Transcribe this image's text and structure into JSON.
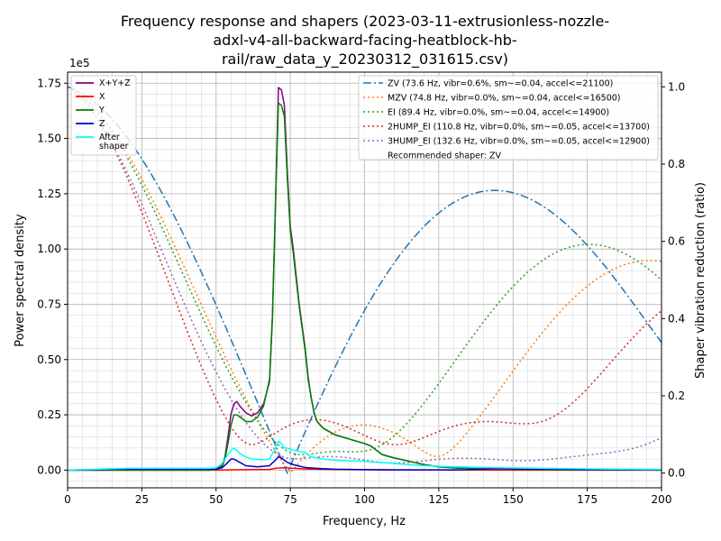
{
  "chart_data": {
    "type": "line",
    "title_lines": [
      "Frequency response and shapers (2023-03-11-extrusionless-nozzle-",
      "adxl-v4-all-backward-facing-heatblock-hb-",
      "rail/raw_data_y_20230312_031615.csv)"
    ],
    "xlabel": "Frequency, Hz",
    "ylabel": "Power spectral density",
    "y2label": "Shaper vibration reduction (ratio)",
    "y_scale_label": "1e5",
    "xlim": [
      0,
      200
    ],
    "ylim": [
      -0.08,
      1.8
    ],
    "y2lim": [
      -0.0381,
      1.0381
    ],
    "x_ticks": [
      "0",
      "25",
      "50",
      "75",
      "100",
      "125",
      "150",
      "175",
      "200"
    ],
    "y_ticks": [
      "0.00",
      "0.25",
      "0.50",
      "0.75",
      "1.00",
      "1.25",
      "1.50",
      "1.75"
    ],
    "y2_ticks": [
      "0.0",
      "0.2",
      "0.4",
      "0.6",
      "0.8",
      "1.0"
    ],
    "grid": true,
    "legend_left_position": "upper-left",
    "legend_right_position": "upper-right",
    "psd_series": [
      {
        "name": "X+Y+Z",
        "color": "#800080",
        "x": [
          0,
          20,
          48,
          50,
          52,
          53,
          54,
          55,
          56,
          57,
          58,
          60,
          62,
          64,
          66,
          68,
          69,
          70,
          71,
          72,
          73,
          74,
          75,
          76,
          78,
          80,
          81,
          82,
          83,
          84,
          86,
          90,
          95,
          100,
          102,
          104,
          106,
          110,
          115,
          120,
          125,
          130,
          135,
          140,
          150,
          160,
          170,
          180,
          190,
          200
        ],
        "y": [
          0,
          0,
          0,
          0.005,
          0.02,
          0.06,
          0.15,
          0.25,
          0.3,
          0.31,
          0.29,
          0.26,
          0.245,
          0.26,
          0.3,
          0.4,
          0.7,
          1.2,
          1.73,
          1.72,
          1.65,
          1.35,
          1.1,
          1.0,
          0.75,
          0.55,
          0.42,
          0.33,
          0.26,
          0.22,
          0.19,
          0.16,
          0.14,
          0.12,
          0.11,
          0.09,
          0.07,
          0.055,
          0.04,
          0.025,
          0.015,
          0.01,
          0.008,
          0.01,
          0.005,
          0.003,
          0.002,
          0.001,
          0.001,
          0
        ]
      },
      {
        "name": "X",
        "color": "#ff0000",
        "x": [
          0,
          50,
          60,
          68,
          70,
          72,
          74,
          76,
          80,
          90,
          100,
          110,
          150,
          200
        ],
        "y": [
          0,
          0,
          0.002,
          0.003,
          0.008,
          0.01,
          0.01,
          0.008,
          0.005,
          0.003,
          0.002,
          0.001,
          0,
          0
        ]
      },
      {
        "name": "Y",
        "color": "#008000",
        "x": [
          0,
          20,
          48,
          50,
          52,
          53,
          54,
          55,
          56,
          57,
          58,
          60,
          62,
          64,
          66,
          68,
          69,
          70,
          71,
          72,
          73,
          74,
          75,
          76,
          78,
          80,
          81,
          82,
          83,
          84,
          86,
          90,
          95,
          100,
          102,
          104,
          106,
          110,
          115,
          120,
          125,
          130,
          135,
          140,
          150,
          160,
          170,
          180,
          190,
          200
        ],
        "y": [
          0,
          0,
          0,
          0.004,
          0.015,
          0.05,
          0.12,
          0.2,
          0.25,
          0.25,
          0.24,
          0.22,
          0.22,
          0.24,
          0.29,
          0.41,
          0.7,
          1.2,
          1.66,
          1.65,
          1.6,
          1.32,
          1.08,
          0.98,
          0.74,
          0.54,
          0.41,
          0.33,
          0.26,
          0.22,
          0.19,
          0.16,
          0.14,
          0.12,
          0.11,
          0.09,
          0.07,
          0.055,
          0.04,
          0.025,
          0.015,
          0.01,
          0.008,
          0.01,
          0.005,
          0.003,
          0.002,
          0.001,
          0.001,
          0
        ]
      },
      {
        "name": "Z",
        "color": "#0000cd",
        "x": [
          0,
          15,
          48,
          50,
          52,
          54,
          55,
          56,
          58,
          60,
          64,
          68,
          70,
          71,
          72,
          73,
          74,
          76,
          78,
          80,
          85,
          90,
          100,
          110,
          120,
          130,
          135,
          140,
          145,
          150,
          170,
          200
        ],
        "y": [
          0.0,
          0.004,
          0.004,
          0.005,
          0.01,
          0.035,
          0.05,
          0.05,
          0.035,
          0.02,
          0.015,
          0.02,
          0.045,
          0.06,
          0.055,
          0.045,
          0.035,
          0.025,
          0.018,
          0.012,
          0.007,
          0.004,
          0.002,
          0.001,
          0.001,
          0.001,
          0.002,
          0.005,
          0.007,
          0.006,
          0.003,
          0.002
        ]
      },
      {
        "name": "After\nshaper",
        "color": "#00ffff",
        "x": [
          0,
          10,
          20,
          48,
          50,
          52,
          54,
          55,
          56,
          57,
          58,
          60,
          62,
          64,
          66,
          68,
          70,
          71,
          72,
          73,
          74,
          76,
          80,
          82,
          86,
          90,
          100,
          110,
          120,
          130,
          140,
          160,
          180,
          200
        ],
        "y": [
          0.0,
          0.004,
          0.008,
          0.008,
          0.01,
          0.03,
          0.07,
          0.09,
          0.1,
          0.09,
          0.075,
          0.06,
          0.05,
          0.048,
          0.047,
          0.05,
          0.1,
          0.13,
          0.12,
          0.1,
          0.1,
          0.09,
          0.08,
          0.06,
          0.05,
          0.045,
          0.04,
          0.03,
          0.02,
          0.015,
          0.012,
          0.008,
          0.005,
          0.003
        ]
      }
    ],
    "shaper_series": [
      {
        "name": "ZV (73.6 Hz, vibr=0.6%, sm~=0.04, accel<=21100)",
        "color": "#1f77b4",
        "dash": "dashdot",
        "freq": 73.6,
        "kind": "ZV"
      },
      {
        "name": "MZV (74.8 Hz, vibr=0.0%, sm~=0.04, accel<=16500)",
        "color": "#ff7f0e",
        "dash": "dotted",
        "freq": 74.8,
        "kind": "MZV"
      },
      {
        "name": "EI (89.4 Hz, vibr=0.0%, sm~=0.04, accel<=14900)",
        "color": "#2ca02c",
        "dash": "dotted",
        "freq": 89.4,
        "kind": "EI"
      },
      {
        "name": "2HUMP_EI (110.8 Hz, vibr=0.0%, sm~=0.05, accel<=13700)",
        "color": "#d62728",
        "dash": "dotted",
        "freq": 110.8,
        "kind": "2HUMP_EI"
      },
      {
        "name": "3HUMP_EI (132.6 Hz, vibr=0.0%, sm~=0.05, accel<=12900)",
        "color": "#9467bd",
        "dash": "dotted",
        "freq": 132.6,
        "kind": "3HUMP_EI"
      }
    ],
    "recommended": "Recommended shaper: ZV"
  }
}
